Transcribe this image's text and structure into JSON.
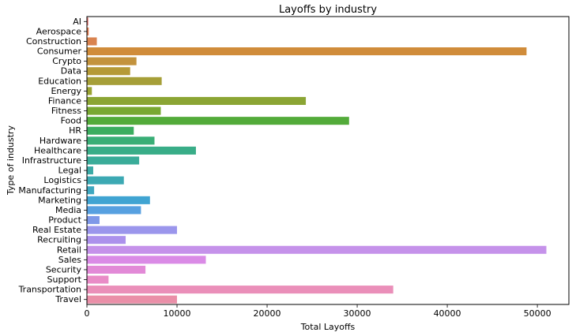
{
  "chart_data": {
    "type": "bar",
    "orientation": "horizontal",
    "title": "Layoffs by industry",
    "xlabel": "Total Layoffs",
    "ylabel": "Type of industry",
    "xlim": [
      0,
      53500
    ],
    "xticks": [
      0,
      10000,
      20000,
      30000,
      40000,
      50000
    ],
    "grid": false,
    "categories": [
      "AI",
      "Aerospace",
      "Construction",
      "Consumer",
      "Crypto",
      "Data",
      "Education",
      "Energy",
      "Finance",
      "Fitness",
      "Food",
      "HR",
      "Hardware",
      "Healthcare",
      "Infrastructure",
      "Legal",
      "Logistics",
      "Manufacturing",
      "Marketing",
      "Media",
      "Product",
      "Real Estate",
      "Recruiting",
      "Retail",
      "Sales",
      "Security",
      "Support",
      "Transportation",
      "Travel"
    ],
    "values": [
      150,
      200,
      1100,
      48800,
      5500,
      4800,
      8300,
      550,
      24300,
      8200,
      29100,
      5200,
      7500,
      12100,
      5800,
      700,
      4100,
      800,
      7000,
      6000,
      1400,
      10000,
      4300,
      51000,
      13200,
      6500,
      2400,
      34000,
      10000
    ],
    "colors": [
      "#e8736e",
      "#e27b4f",
      "#d9834f",
      "#d08c3a",
      "#c3933d",
      "#b59a37",
      "#a69f38",
      "#9aa332",
      "#8ba534",
      "#79a832",
      "#53ab3a",
      "#3bad5f",
      "#39ae76",
      "#39ad88",
      "#3aac99",
      "#3baaa6",
      "#3ca9b3",
      "#3ea7c0",
      "#40a4d2",
      "#57a0e0",
      "#7e98e8",
      "#9b96ec",
      "#ac91ec",
      "#c592ea",
      "#da8be6",
      "#e28ad7",
      "#e98cc7",
      "#ea8fb9",
      "#ea8fa8"
    ]
  }
}
